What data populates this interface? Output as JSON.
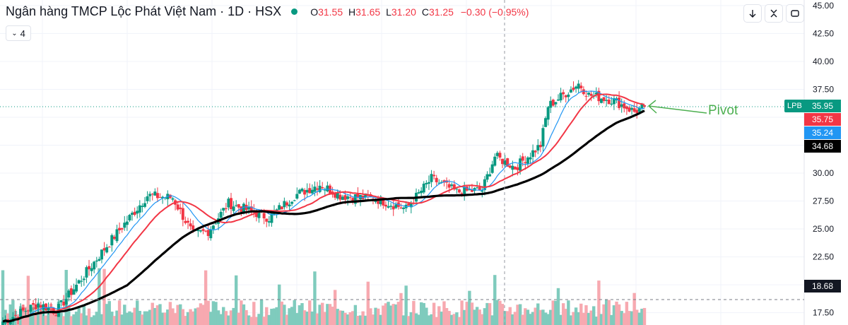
{
  "header": {
    "title": "Ngân hàng TMCP Lộc Phát Việt Nam · 1D · HSX",
    "ohlc": {
      "o_label": "O",
      "o": "31.55",
      "h_label": "H",
      "h": "31.65",
      "l_label": "L",
      "l": "31.20",
      "c_label": "C",
      "c": "31.25",
      "change": "−0.30 (−0.95%)"
    }
  },
  "indicators_toggle": {
    "count": "4"
  },
  "toolbar": [
    {
      "icon": "arrow-down-icon"
    },
    {
      "icon": "collapse-icon"
    },
    {
      "icon": "fullscreen-icon"
    }
  ],
  "annotation": {
    "text": "Pivot"
  },
  "price_tags": {
    "symbol": "LPB",
    "last": "35.95",
    "ma_red": "35.75",
    "ma_blue": "35.24",
    "ma_black": "34.68",
    "volume_line": "18.68"
  },
  "colors": {
    "up": "#089981",
    "down": "#f23645",
    "vol_up": "#7fcbbd",
    "vol_down": "#f7a9b0",
    "ma_fast": "#2962ff",
    "ma_mid": "#f23645",
    "ma_slow": "#000000",
    "pivot": "#4caf50"
  },
  "chart_data": {
    "type": "candlestick",
    "y_ticks": [
      "45.00",
      "42.50",
      "40.00",
      "37.50",
      "35.00",
      "32.50",
      "30.00",
      "27.50",
      "25.00",
      "22.50",
      "20.00",
      "17.50"
    ],
    "ylim": [
      16.4,
      45.5
    ],
    "last_price": 35.95,
    "volume_line_level": 18.68,
    "segments": [
      {
        "start": 16.6,
        "end": 18.3,
        "bars": 15
      },
      {
        "start": 18.3,
        "end": 17.6,
        "bars": 7
      },
      {
        "start": 17.6,
        "end": 23.5,
        "bars": 20
      },
      {
        "start": 23.5,
        "end": 28.0,
        "bars": 16
      },
      {
        "start": 28.0,
        "end": 27.8,
        "bars": 10
      },
      {
        "start": 27.8,
        "end": 24.5,
        "bars": 8
      },
      {
        "start": 24.5,
        "end": 24.8,
        "bars": 6
      },
      {
        "start": 24.8,
        "end": 27.3,
        "bars": 8
      },
      {
        "start": 27.3,
        "end": 26.0,
        "bars": 16
      },
      {
        "start": 26.0,
        "end": 28.0,
        "bars": 10
      },
      {
        "start": 28.0,
        "end": 29.0,
        "bars": 10
      },
      {
        "start": 29.0,
        "end": 28.0,
        "bars": 8
      },
      {
        "start": 28.0,
        "end": 27.7,
        "bars": 14
      },
      {
        "start": 27.7,
        "end": 26.8,
        "bars": 12
      },
      {
        "start": 26.8,
        "end": 29.5,
        "bars": 10
      },
      {
        "start": 29.5,
        "end": 28.3,
        "bars": 10
      },
      {
        "start": 28.3,
        "end": 28.5,
        "bars": 10
      },
      {
        "start": 28.5,
        "end": 31.5,
        "bars": 5
      },
      {
        "start": 31.5,
        "end": 30.5,
        "bars": 8
      },
      {
        "start": 30.5,
        "end": 32.5,
        "bars": 10
      },
      {
        "start": 32.5,
        "end": 36.0,
        "bars": 3
      },
      {
        "start": 36.0,
        "end": 38.0,
        "bars": 12
      },
      {
        "start": 38.0,
        "end": 37.0,
        "bars": 4
      },
      {
        "start": 37.0,
        "end": 36.5,
        "bars": 10
      },
      {
        "start": 36.5,
        "end": 35.5,
        "bars": 8
      },
      {
        "start": 35.5,
        "end": 35.95,
        "bars": 4
      }
    ]
  }
}
